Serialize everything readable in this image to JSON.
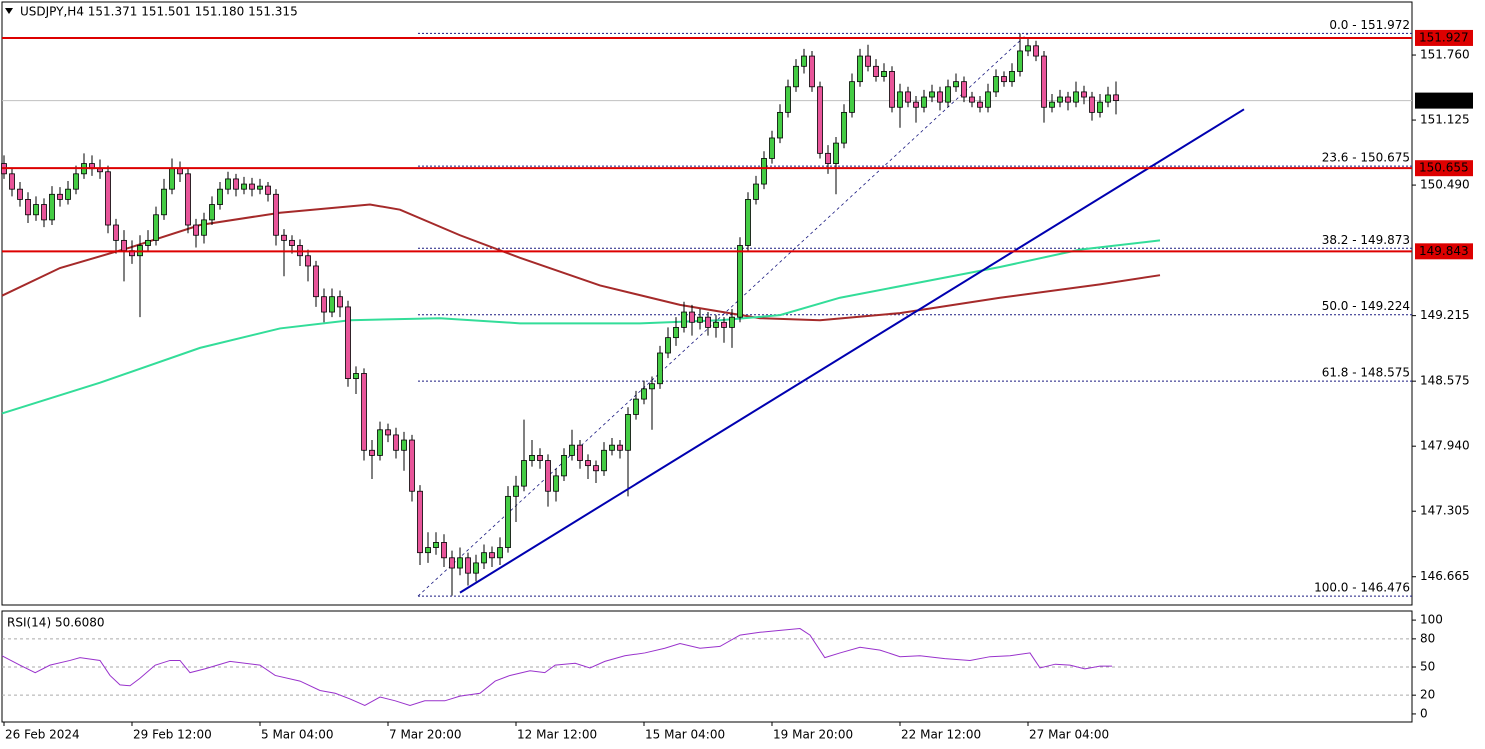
{
  "chart_data": [
    {
      "type": "candlestick",
      "title": "USDJPY,H4  151.371 151.501 151.180 151.315",
      "xlim": [
        -0.25,
        176
      ],
      "ylim": [
        146.389,
        152.278
      ],
      "yticks": [
        {
          "value": 151.76,
          "label": "151.760"
        },
        151.125,
        {
          "value": 150.49,
          "label": "150.490"
        },
        149.215,
        148.575,
        {
          "value": 147.94,
          "label": "147.940"
        },
        147.305,
        146.665
      ],
      "up_color": "#44cc44",
      "down_color": "#e8559a",
      "ohlc": [
        [
          150.7,
          150.78,
          150.55,
          150.6
        ],
        [
          150.6,
          150.66,
          150.38,
          150.45
        ],
        [
          150.45,
          150.52,
          150.28,
          150.35
        ],
        [
          150.35,
          150.42,
          150.12,
          150.2
        ],
        [
          150.2,
          150.38,
          150.14,
          150.3
        ],
        [
          150.3,
          150.36,
          150.08,
          150.15
        ],
        [
          150.15,
          150.48,
          150.1,
          150.4
        ],
        [
          150.4,
          150.47,
          150.28,
          150.35
        ],
        [
          150.35,
          150.53,
          150.3,
          150.45
        ],
        [
          150.45,
          150.68,
          150.4,
          150.6
        ],
        [
          150.6,
          150.8,
          150.55,
          150.7
        ],
        [
          150.7,
          150.78,
          150.58,
          150.65
        ],
        [
          150.65,
          150.74,
          150.55,
          150.62
        ],
        [
          150.62,
          150.68,
          150.02,
          150.1
        ],
        [
          150.1,
          150.16,
          149.82,
          149.95
        ],
        [
          149.95,
          150.05,
          149.55,
          149.85
        ],
        [
          149.85,
          149.95,
          149.72,
          149.8
        ],
        [
          149.8,
          150.0,
          149.2,
          149.9
        ],
        [
          149.9,
          150.05,
          149.85,
          149.95
        ],
        [
          149.95,
          150.28,
          149.9,
          150.2
        ],
        [
          150.2,
          150.55,
          150.15,
          150.45
        ],
        [
          150.45,
          150.75,
          150.4,
          150.65
        ],
        [
          150.65,
          150.72,
          150.52,
          150.6
        ],
        [
          150.6,
          150.66,
          150.02,
          150.1
        ],
        [
          150.1,
          150.16,
          149.88,
          150.0
        ],
        [
          150.0,
          150.22,
          149.92,
          150.15
        ],
        [
          150.15,
          150.38,
          150.1,
          150.3
        ],
        [
          150.3,
          150.52,
          150.25,
          150.45
        ],
        [
          150.45,
          150.62,
          150.4,
          150.55
        ],
        [
          150.55,
          150.6,
          150.38,
          150.45
        ],
        [
          150.45,
          150.57,
          150.4,
          150.5
        ],
        [
          150.5,
          150.56,
          150.38,
          150.45
        ],
        [
          150.45,
          150.55,
          150.4,
          150.48
        ],
        [
          150.48,
          150.52,
          150.33,
          150.4
        ],
        [
          150.4,
          150.45,
          149.9,
          150.0
        ],
        [
          150.0,
          150.06,
          149.6,
          149.95
        ],
        [
          149.95,
          150.0,
          149.82,
          149.9
        ],
        [
          149.9,
          149.96,
          149.7,
          149.8
        ],
        [
          149.8,
          149.86,
          149.55,
          149.7
        ],
        [
          149.7,
          149.75,
          149.3,
          149.4
        ],
        [
          149.4,
          149.48,
          149.15,
          149.25
        ],
        [
          149.25,
          149.48,
          149.2,
          149.4
        ],
        [
          149.4,
          149.46,
          149.2,
          149.3
        ],
        [
          149.3,
          149.36,
          148.52,
          148.6
        ],
        [
          148.6,
          148.72,
          148.45,
          148.65
        ],
        [
          148.65,
          148.7,
          147.8,
          147.9
        ],
        [
          147.9,
          148.0,
          147.62,
          147.85
        ],
        [
          147.85,
          148.18,
          147.8,
          148.1
        ],
        [
          148.1,
          148.16,
          147.98,
          148.05
        ],
        [
          148.05,
          148.12,
          147.82,
          147.9
        ],
        [
          147.9,
          148.08,
          147.7,
          148.0
        ],
        [
          148.0,
          148.05,
          147.4,
          147.5
        ],
        [
          147.5,
          147.56,
          146.78,
          146.9
        ],
        [
          146.9,
          147.1,
          146.8,
          146.95
        ],
        [
          146.95,
          147.1,
          146.88,
          147.0
        ],
        [
          147.0,
          147.08,
          146.76,
          146.85
        ],
        [
          146.85,
          146.92,
          146.48,
          146.75
        ],
        [
          146.75,
          146.95,
          146.68,
          146.85
        ],
        [
          146.85,
          146.9,
          146.58,
          146.7
        ],
        [
          146.7,
          146.88,
          146.62,
          146.8
        ],
        [
          146.8,
          146.98,
          146.74,
          146.9
        ],
        [
          146.9,
          146.96,
          146.76,
          146.85
        ],
        [
          146.85,
          147.05,
          146.78,
          146.95
        ],
        [
          146.95,
          147.55,
          146.9,
          147.45
        ],
        [
          147.45,
          147.65,
          147.2,
          147.55
        ],
        [
          147.55,
          148.2,
          147.5,
          147.8
        ],
        [
          147.8,
          148.0,
          147.74,
          147.85
        ],
        [
          147.85,
          147.92,
          147.72,
          147.8
        ],
        [
          147.8,
          147.86,
          147.35,
          147.5
        ],
        [
          147.5,
          147.72,
          147.4,
          147.65
        ],
        [
          147.65,
          147.92,
          147.6,
          147.85
        ],
        [
          147.85,
          148.1,
          147.8,
          147.95
        ],
        [
          147.95,
          148.0,
          147.72,
          147.8
        ],
        [
          147.8,
          147.86,
          147.62,
          147.75
        ],
        [
          147.75,
          147.8,
          147.58,
          147.7
        ],
        [
          147.7,
          147.98,
          147.65,
          147.9
        ],
        [
          147.9,
          148.02,
          147.85,
          147.95
        ],
        [
          147.95,
          148.0,
          147.82,
          147.9
        ],
        [
          147.9,
          148.32,
          147.45,
          148.25
        ],
        [
          148.25,
          148.48,
          148.2,
          148.4
        ],
        [
          148.4,
          148.58,
          148.35,
          148.5
        ],
        [
          148.5,
          148.62,
          148.1,
          148.55
        ],
        [
          148.55,
          148.92,
          148.5,
          148.85
        ],
        [
          148.85,
          149.1,
          148.8,
          149.0
        ],
        [
          149.0,
          149.2,
          148.92,
          149.1
        ],
        [
          149.1,
          149.35,
          149.05,
          149.25
        ],
        [
          149.25,
          149.32,
          149.02,
          149.15
        ],
        [
          149.15,
          149.28,
          149.08,
          149.2
        ],
        [
          149.2,
          149.25,
          149.02,
          149.1
        ],
        [
          149.1,
          149.22,
          149.0,
          149.15
        ],
        [
          149.15,
          149.2,
          148.95,
          149.1
        ],
        [
          149.1,
          149.28,
          148.9,
          149.2
        ],
        [
          149.2,
          149.98,
          149.15,
          149.9
        ],
        [
          149.9,
          150.42,
          149.85,
          150.35
        ],
        [
          150.35,
          150.58,
          150.3,
          150.5
        ],
        [
          150.5,
          150.82,
          150.45,
          150.75
        ],
        [
          150.75,
          151.02,
          150.7,
          150.95
        ],
        [
          150.95,
          151.28,
          150.9,
          151.2
        ],
        [
          151.2,
          151.52,
          151.15,
          151.45
        ],
        [
          151.45,
          151.72,
          151.4,
          151.65
        ],
        [
          151.65,
          151.82,
          151.58,
          151.75
        ],
        [
          151.75,
          151.8,
          151.4,
          151.45
        ],
        [
          151.45,
          151.5,
          150.75,
          150.8
        ],
        [
          150.8,
          150.88,
          150.6,
          150.7
        ],
        [
          150.7,
          150.96,
          150.4,
          150.9
        ],
        [
          150.9,
          151.28,
          150.85,
          151.2
        ],
        [
          151.2,
          151.58,
          151.15,
          151.5
        ],
        [
          151.5,
          151.82,
          151.45,
          151.75
        ],
        [
          151.75,
          151.86,
          151.6,
          151.65
        ],
        [
          151.65,
          151.72,
          151.5,
          151.55
        ],
        [
          151.55,
          151.68,
          151.5,
          151.6
        ],
        [
          151.6,
          151.65,
          151.2,
          151.25
        ],
        [
          151.25,
          151.48,
          151.05,
          151.4
        ],
        [
          151.4,
          151.45,
          151.25,
          151.3
        ],
        [
          151.3,
          151.36,
          151.1,
          151.25
        ],
        [
          151.25,
          151.42,
          151.2,
          151.35
        ],
        [
          151.35,
          151.47,
          151.3,
          151.4
        ],
        [
          151.4,
          151.45,
          151.22,
          151.3
        ],
        [
          151.3,
          151.52,
          151.25,
          151.45
        ],
        [
          151.45,
          151.58,
          151.4,
          151.5
        ],
        [
          151.5,
          151.55,
          151.3,
          151.35
        ],
        [
          151.35,
          151.4,
          151.25,
          151.3
        ],
        [
          151.3,
          151.36,
          151.2,
          151.25
        ],
        [
          151.25,
          151.48,
          151.2,
          151.4
        ],
        [
          151.4,
          151.62,
          151.35,
          151.55
        ],
        [
          151.55,
          151.6,
          151.45,
          151.5
        ],
        [
          151.5,
          151.68,
          151.45,
          151.6
        ],
        [
          151.6,
          151.97,
          151.55,
          151.8
        ],
        [
          151.8,
          151.92,
          151.75,
          151.85
        ],
        [
          151.85,
          151.9,
          151.7,
          151.75
        ],
        [
          151.75,
          151.8,
          151.1,
          151.25
        ],
        [
          151.25,
          151.38,
          151.2,
          151.3
        ],
        [
          151.3,
          151.42,
          151.25,
          151.35
        ],
        [
          151.35,
          151.4,
          151.22,
          151.3
        ],
        [
          151.3,
          151.5,
          151.25,
          151.4
        ],
        [
          151.4,
          151.46,
          151.28,
          151.35
        ],
        [
          151.35,
          151.4,
          151.12,
          151.2
        ],
        [
          151.2,
          151.38,
          151.15,
          151.3
        ],
        [
          151.3,
          151.45,
          151.25,
          151.37
        ],
        [
          151.371,
          151.501,
          151.18,
          151.315
        ]
      ],
      "overlays": [
        {
          "color": "#a52a2a",
          "x": [
            -0.25,
            7,
            15.75,
            24.5,
            34.5,
            45.75,
            49.5,
            57,
            64.5,
            74.5,
            84.5,
            94.5,
            102,
            112,
            124.5,
            137,
            144.5
          ],
          "values": [
            149.41,
            149.68,
            149.88,
            150.1,
            150.22,
            150.3,
            150.25,
            150.0,
            149.78,
            149.51,
            149.32,
            149.19,
            149.17,
            149.24,
            149.39,
            149.52,
            149.61
          ]
        },
        {
          "color": "#33dd99",
          "x": [
            -0.25,
            12,
            24.5,
            34.5,
            43.25,
            54.5,
            64.5,
            79.5,
            89.5,
            97,
            104.5,
            114.5,
            124.5,
            134.5,
            144.5
          ],
          "values": [
            148.26,
            148.56,
            148.9,
            149.09,
            149.17,
            149.19,
            149.14,
            149.14,
            149.17,
            149.22,
            149.39,
            149.54,
            149.69,
            149.86,
            149.95
          ]
        }
      ],
      "trendline": {
        "color": "#0000b0",
        "x": [
          57,
          155
        ],
        "y": [
          146.51,
          151.23
        ]
      },
      "fib_line": {
        "color": "#1a1a80",
        "x": [
          51.75,
          128
        ],
        "y": [
          146.476,
          151.972
        ]
      },
      "fib_levels": [
        {
          "label": "0.0 - 151.972",
          "value": 151.972
        },
        {
          "label": "23.6 - 150.675",
          "value": 150.675
        },
        {
          "label": "38.2 - 149.873",
          "value": 149.873
        },
        {
          "label": "50.0 - 149.224",
          "value": 149.224
        },
        {
          "label": "61.8 - 148.575",
          "value": 148.575
        },
        {
          "label": "100.0 - 146.476",
          "value": 146.476
        }
      ],
      "levels": [
        {
          "value": 151.927,
          "color": "#dd0000"
        },
        {
          "value": 150.655,
          "color": "#dd0000"
        },
        {
          "value": 149.843,
          "color": "#dd0000"
        }
      ],
      "price_line": {
        "value": 151.315,
        "color": "#c0c0c0"
      }
    },
    {
      "type": "line",
      "title": "RSI(14) 50.6080",
      "color": "#9932cc",
      "xlim": [
        -0.25,
        176
      ],
      "ylim": [
        -8.6,
        109.7
      ],
      "yticks": [
        0,
        20,
        50,
        80,
        100
      ],
      "levels": [
        20,
        50,
        80
      ],
      "x": [
        -0.25,
        2,
        3.9,
        5.75,
        8.25,
        9.5,
        12,
        13.25,
        14.5,
        15.75,
        17,
        18.9,
        20.75,
        22,
        23.25,
        25.1,
        28.25,
        32,
        33.9,
        37,
        39.5,
        41.4,
        43.25,
        45.1,
        47,
        48.9,
        50.75,
        52.6,
        55.1,
        57,
        59.5,
        61.4,
        63.25,
        65.75,
        67.6,
        68.9,
        71.4,
        73.25,
        75.1,
        77.6,
        80.1,
        82.6,
        84.5,
        87,
        89.5,
        92,
        94.5,
        97,
        99.5,
        100.75,
        102.6,
        104.5,
        107,
        109.5,
        112,
        114.5,
        117.6,
        120.75,
        123.25,
        125.75,
        128.25,
        129.5,
        131.4,
        133.25,
        135.1,
        137,
        138.5
      ],
      "values": [
        62,
        52,
        44,
        52,
        57,
        60,
        57,
        41,
        31,
        30,
        38,
        52,
        57,
        57,
        44,
        48,
        56,
        52,
        41,
        35,
        25,
        22,
        16,
        9,
        18,
        14,
        9,
        14,
        14,
        19,
        22,
        35,
        41,
        46,
        44,
        52,
        54,
        49,
        56,
        62,
        65,
        70,
        75,
        70,
        72,
        84,
        87,
        89,
        91,
        84,
        60,
        65,
        71,
        68,
        61,
        62,
        59,
        57,
        61,
        62,
        65,
        49,
        53,
        52,
        48,
        51,
        51
      ],
      "xticks": [
        {
          "value": 0,
          "label": "26 Feb 2024"
        },
        {
          "value": 16,
          "label": "29 Feb 12:00"
        },
        {
          "value": 32,
          "label": "5 Mar 04:00"
        },
        {
          "value": 48,
          "label": "7 Mar 20:00"
        },
        {
          "value": 64,
          "label": "12 Mar 12:00"
        },
        {
          "value": 80,
          "label": "15 Mar 04:00"
        },
        {
          "value": 96,
          "label": "19 Mar 20:00"
        },
        {
          "value": 112,
          "label": "22 Mar 12:00"
        },
        {
          "value": 128,
          "label": "27 Mar 04:00"
        }
      ]
    }
  ]
}
